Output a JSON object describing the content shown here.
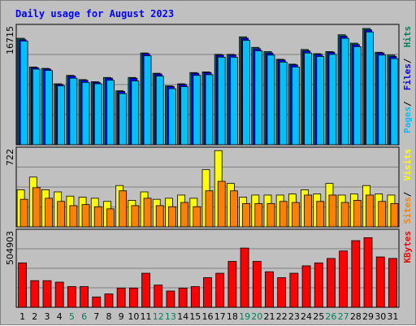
{
  "chart_data": {
    "type": "bar",
    "title": "Daily usage for August 2023",
    "categories": [
      "1",
      "2",
      "3",
      "4",
      "5",
      "6",
      "7",
      "8",
      "9",
      "10",
      "11",
      "12",
      "13",
      "14",
      "15",
      "16",
      "17",
      "18",
      "19",
      "20",
      "21",
      "22",
      "23",
      "24",
      "25",
      "26",
      "27",
      "28",
      "29",
      "30",
      "31"
    ],
    "weekend_days": [
      "5",
      "6",
      "12",
      "13",
      "19",
      "20",
      "26",
      "27"
    ],
    "grid": true,
    "panels": [
      {
        "id": "hits",
        "ymax_label": "16715",
        "ymax": 16715,
        "side_labels": [
          "Pages",
          "Files",
          "Hits"
        ],
        "series": [
          {
            "name": "Hits",
            "color": "#00805c",
            "values": [
              15200,
              11100,
              10900,
              8700,
              9900,
              9300,
              9000,
              9600,
              7700,
              9600,
              13100,
              10200,
              8400,
              8700,
              10300,
              10400,
              12900,
              12900,
              15400,
              13900,
              13300,
              12200,
              11500,
              13600,
              13000,
              13300,
              15700,
              14500,
              16600,
              13200,
              12800
            ]
          },
          {
            "name": "Files",
            "color": "#0000ff",
            "values": [
              15000,
              11000,
              10800,
              8600,
              9800,
              9200,
              8900,
              9500,
              7600,
              9500,
              13000,
              10100,
              8300,
              8600,
              10200,
              10300,
              12800,
              12800,
              15200,
              13700,
              13100,
              12100,
              11400,
              13400,
              12900,
              13200,
              15500,
              14300,
              16400,
              13100,
              12600
            ]
          },
          {
            "name": "Pages",
            "color": "#00c0ff",
            "values": [
              14800,
              10800,
              10600,
              8400,
              9500,
              8900,
              8700,
              9200,
              7300,
              9100,
              12700,
              9800,
              8000,
              8300,
              9900,
              10000,
              12500,
              12500,
              14900,
              13400,
              12800,
              11800,
              11100,
              13100,
              12600,
              12900,
              15200,
              14000,
              16100,
              12800,
              12300
            ]
          }
        ]
      },
      {
        "id": "visits",
        "ymax_label": "722",
        "ymax": 722,
        "side_labels": [
          "Sites",
          "Visits"
        ],
        "series": [
          {
            "name": "Visits",
            "color": "#ffff00",
            "values": [
              350,
              470,
              350,
              330,
              290,
              280,
              270,
              240,
              390,
              250,
              330,
              260,
              270,
              300,
              270,
              540,
              720,
              410,
              280,
              300,
              300,
              300,
              310,
              350,
              310,
              410,
              300,
              310,
              390,
              310,
              300
            ]
          },
          {
            "name": "Sites",
            "color": "#ff8000",
            "values": [
              260,
              370,
              270,
              240,
              200,
              210,
              190,
              170,
              340,
              200,
              270,
              200,
              190,
              230,
              190,
              340,
              430,
              340,
              220,
              220,
              220,
              240,
              230,
              300,
              240,
              300,
              230,
              250,
              300,
              240,
              220
            ]
          }
        ]
      },
      {
        "id": "kbytes",
        "ymax_label": "504903",
        "ymax": 504903,
        "side_labels": [
          "KBytes"
        ],
        "series": [
          {
            "name": "KBytes",
            "color": "#ff0000",
            "values": [
              300000,
              180000,
              180000,
              170000,
              140000,
              140000,
              70000,
              90000,
              130000,
              130000,
              230000,
              150000,
              110000,
              130000,
              140000,
              200000,
              230000,
              310000,
              400000,
              310000,
              240000,
              200000,
              230000,
              280000,
              300000,
              330000,
              380000,
              450000,
              470000,
              340000,
              330000
            ]
          }
        ]
      }
    ],
    "colors": {
      "title": "#0000ff",
      "background": "#c0c0c0",
      "plot_border": "#000000",
      "grid": "#808080",
      "weekday_tick": "#000000",
      "weekend_tick": "#00805c",
      "ymax_label": "#000000"
    }
  }
}
